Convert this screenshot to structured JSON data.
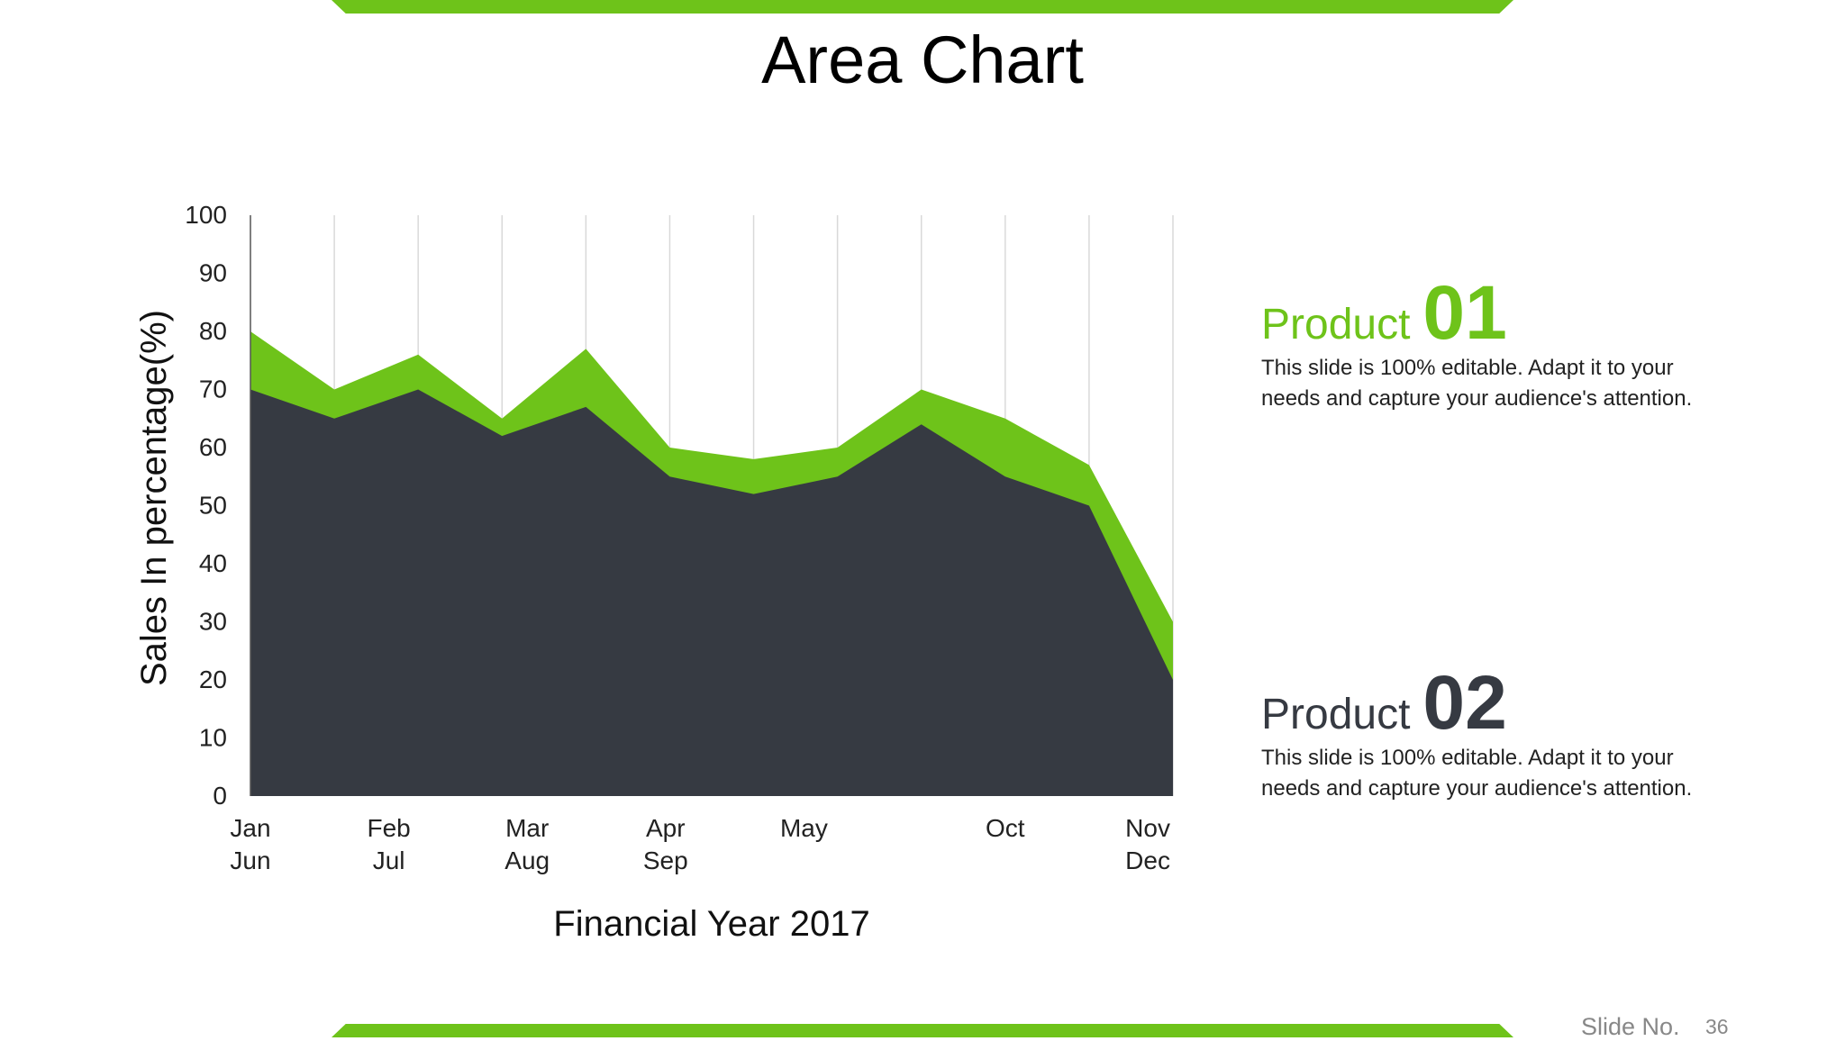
{
  "colors": {
    "accent": "#6ec31a",
    "dark": "#363a42",
    "grid": "#d9d9d9"
  },
  "slide": {
    "title": "Area Chart",
    "slide_label": "Slide No.",
    "slide_number": "36"
  },
  "products": [
    {
      "label": "Product",
      "number": "01",
      "description": "This slide is 100% editable. Adapt it to your needs and capture your audience's attention."
    },
    {
      "label": "Product",
      "number": "02",
      "description": "This slide is 100% editable. Adapt it to your needs and capture your audience's attention."
    }
  ],
  "chart_data": {
    "type": "area",
    "title": "",
    "xlabel": "Financial Year 2017",
    "ylabel": "Sales In percentage(%)",
    "ylim": [
      0,
      100
    ],
    "yticks": [
      0,
      10,
      20,
      30,
      40,
      50,
      60,
      70,
      80,
      90,
      100
    ],
    "grid": "vertical",
    "stacked": false,
    "x_tick_labels": [
      [
        "Jan",
        "Jun"
      ],
      [
        "Feb",
        "Jul"
      ],
      [
        "Mar",
        "Aug"
      ],
      [
        "Apr",
        "Sep"
      ],
      [
        "May"
      ],
      [
        "Oct"
      ],
      [
        "Nov",
        "Dec"
      ]
    ],
    "x_tick_label_positions": [
      0,
      1.65,
      3.3,
      4.95,
      6.6,
      9,
      10.7
    ],
    "x_points": [
      0,
      1,
      2,
      3,
      4,
      5,
      6,
      7,
      8,
      9,
      10,
      11
    ],
    "series": [
      {
        "name": "",
        "color": "#6ec31a",
        "values": [
          80,
          70,
          76,
          65,
          77,
          60,
          58,
          60,
          70,
          65,
          57,
          30
        ]
      },
      {
        "name": "",
        "color": "#363a42",
        "values": [
          70,
          65,
          70,
          62,
          67,
          55,
          52,
          55,
          64,
          55,
          50,
          20
        ]
      }
    ]
  }
}
